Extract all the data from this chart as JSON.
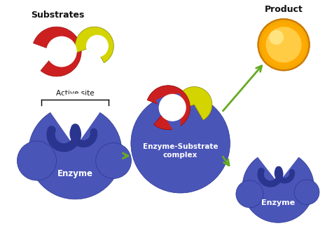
{
  "bg_color": "#ffffff",
  "enzyme_color": "#4a55b8",
  "enzyme_edge": "#2a3590",
  "substrate_red": "#cc2020",
  "substrate_yellow": "#d4d400",
  "product_orange_outer": "#f5a800",
  "product_orange_inner": "#ffcc44",
  "arrow_color": "#66aa22",
  "text_color": "#111111",
  "text_color_white": "#ffffff",
  "label_enzyme": "Enzyme",
  "label_complex": "Enzyme-Substrate\ncomplex",
  "label_enzyme2": "Enzyme",
  "label_substrates": "Substrates",
  "label_product": "Product",
  "label_active_site": "Active site"
}
